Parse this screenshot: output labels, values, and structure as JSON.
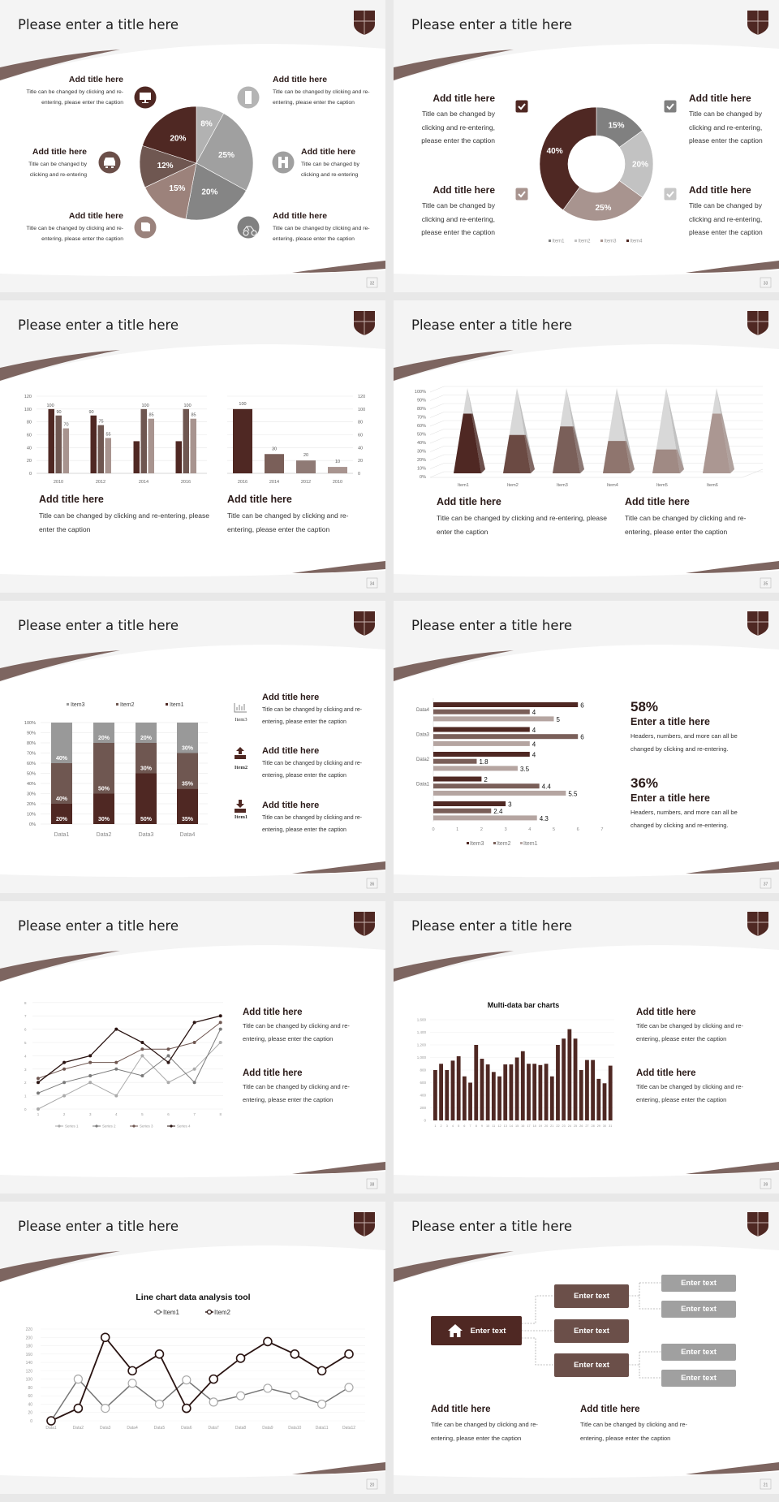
{
  "slides": [
    {
      "title": "Please enter a title here",
      "page": "32",
      "blocks": [
        {
          "title": "Add title here",
          "caption": "Title can be changed by clicking and re-entering, please enter the caption"
        },
        {
          "title": "Add title here",
          "caption": "Title can be changed by clicking and re-entering"
        },
        {
          "title": "Add title here",
          "caption": "Title can be changed by clicking and re-entering, please enter the caption"
        },
        {
          "title": "Add title here",
          "caption": "Title can be changed by clicking and re-entering, please enter the caption"
        },
        {
          "title": "Add title here",
          "caption": "Title can be changed by clicking and re-entering"
        },
        {
          "title": "Add title here",
          "caption": "Title can be changed by clicking and re-entering, please enter the caption"
        }
      ],
      "icons": [
        "monitor-icon",
        "car-icon",
        "book-icon",
        "phone-icon",
        "binoculars-icon",
        "bicycle-icon"
      ]
    },
    {
      "title": "Please enter a title here",
      "page": "33",
      "blocks": [
        {
          "title": "Add title here",
          "caption": "Title can be changed by clicking and re-entering, please enter the caption"
        },
        {
          "title": "Add title here",
          "caption": "Title can be changed by clicking and re-entering, please enter the caption"
        },
        {
          "title": "Add title here",
          "caption": "Title can be changed by clicking and re-entering, please enter the caption"
        },
        {
          "title": "Add title here",
          "caption": "Title can be changed by clicking and re-entering, please enter the caption"
        }
      ],
      "icons": [
        "checkbox-icon"
      ]
    },
    {
      "title": "Please enter a title here",
      "page": "34",
      "blocks": [
        {
          "title": "Add title here",
          "caption": "Title can be changed by clicking and re-entering, please enter the caption"
        },
        {
          "title": "Add title here",
          "caption": "Title can be changed by clicking and re-entering, please enter the caption"
        }
      ]
    },
    {
      "title": "Please enter a title here",
      "page": "35",
      "blocks": [
        {
          "title": "Add title here",
          "caption": "Title can be changed by clicking and re-entering, please enter the caption"
        },
        {
          "title": "Add title here",
          "caption": "Title can be changed by clicking and re-entering, please enter the caption"
        }
      ]
    },
    {
      "title": "Please enter a title here",
      "page": "36",
      "blocks": [
        {
          "title": "Add title here",
          "caption": "Title can be changed by clicking and re-entering, please enter the caption"
        },
        {
          "title": "Add title here",
          "caption": "Title can be changed by clicking and re-entering, please enter the caption"
        },
        {
          "title": "Add title here",
          "caption": "Title can be changed by clicking and re-entering, please enter the caption"
        }
      ],
      "icon_labels": [
        "Item3",
        "Item2",
        "Item1"
      ],
      "icons": [
        "bar-chart-icon",
        "upload-icon",
        "download-icon"
      ]
    },
    {
      "title": "Please enter a title here",
      "page": "37",
      "stats": [
        {
          "value": "58%",
          "title": "Enter a title here",
          "caption": "Headers, numbers, and more can all be changed by clicking and re-entering."
        },
        {
          "value": "36%",
          "title": "Enter a title here",
          "caption": "Headers, numbers, and more can all be changed by clicking and re-entering."
        }
      ]
    },
    {
      "title": "Please enter a title here",
      "page": "38",
      "blocks": [
        {
          "title": "Add title here",
          "caption": "Title can be changed by clicking and re-entering, please enter the caption"
        },
        {
          "title": "Add title here",
          "caption": "Title can be changed by clicking and re-entering, please enter the caption"
        }
      ]
    },
    {
      "title": "Please enter a title here",
      "page": "39",
      "blocks": [
        {
          "title": "Add title here",
          "caption": "Title can be changed by clicking and re-entering, please enter the caption"
        },
        {
          "title": "Add title here",
          "caption": "Title can be changed by clicking and re-entering, please enter the caption"
        }
      ]
    },
    {
      "title": "Please enter a title here",
      "page": "20"
    },
    {
      "title": "Please enter a title here",
      "page": "21",
      "nodes": {
        "root": "Enter text",
        "mid": [
          "Enter text",
          "Enter text",
          "Enter text"
        ],
        "leaf": [
          "Enter text",
          "Enter text",
          "Enter text",
          "Enter text"
        ]
      },
      "icons": [
        "home-icon"
      ],
      "blocks": [
        {
          "title": "Add title here",
          "caption": "Title can be changed by clicking and re-entering, please enter the caption"
        },
        {
          "title": "Add title here",
          "caption": "Title can be changed by clicking and re-entering, please enter the caption"
        }
      ]
    }
  ],
  "colors": {
    "brand_dark": "#4f2823",
    "brand_mid": "#6f5751",
    "brand_light": "#a8948f",
    "swoosh": "#7d6560"
  },
  "chart_data": [
    {
      "type": "pie",
      "values": [
        8,
        25,
        20,
        15,
        12,
        20
      ],
      "data_labels": [
        "8%",
        "25%",
        "20%",
        "15%",
        "12%",
        "20%"
      ],
      "colors": [
        "#b2b2b2",
        "#a0a0a0",
        "#858585",
        "#9c827b",
        "#6f5751",
        "#4f2823"
      ]
    },
    {
      "type": "pie",
      "donut": true,
      "categories": [
        "Item1",
        "Item2",
        "Item3",
        "Item4"
      ],
      "values": [
        15,
        20,
        25,
        40
      ],
      "data_labels": [
        "15%",
        "20%",
        "25%",
        "40%"
      ],
      "legend": [
        "Item1",
        "Item2",
        "Item3",
        "Item4"
      ],
      "legend_position": "bottom",
      "colors": [
        "#808080",
        "#c2c2c2",
        "#a8948f",
        "#4f2823"
      ]
    },
    {
      "type": "bar",
      "categories": [
        "2010",
        "2012",
        "2014",
        "2016"
      ],
      "ylim": [
        0,
        120
      ],
      "yticks": [
        0,
        20,
        40,
        60,
        80,
        100,
        120
      ],
      "grid": true,
      "series": [
        {
          "values": [
            100,
            90,
            50,
            50
          ],
          "labels": [
            "100",
            "90",
            null,
            null
          ],
          "color": "#4f2823"
        },
        {
          "values": [
            90,
            75,
            100,
            100
          ],
          "labels": [
            "90",
            "75",
            "100",
            "100"
          ],
          "color": "#6f5751"
        },
        {
          "values": [
            70,
            55,
            85,
            85
          ],
          "labels": [
            "70",
            "55",
            "85",
            "85"
          ],
          "color": "#a8948f"
        }
      ]
    },
    {
      "type": "bar",
      "categories": [
        "2016",
        "2014",
        "2012",
        "2010"
      ],
      "values": [
        100,
        30,
        20,
        10
      ],
      "data_labels": [
        "100",
        "30",
        "20",
        "10"
      ],
      "ylim": [
        0,
        120
      ],
      "yticks": [
        0,
        20,
        40,
        60,
        80,
        100,
        120
      ],
      "y_axis": "right",
      "grid": true,
      "colors": [
        "#4f2823",
        "#7a5f59",
        "#8f7a75",
        "#a8948f"
      ]
    },
    {
      "type": "bar",
      "style": "3d-pyramid",
      "categories": [
        "Item1",
        "Item2",
        "Item3",
        "Item4",
        "Item5",
        "Item6"
      ],
      "values": [
        70,
        45,
        55,
        38,
        28,
        70
      ],
      "ylim": [
        0,
        100
      ],
      "yticks": [
        "0%",
        "10%",
        "20%",
        "30%",
        "40%",
        "50%",
        "60%",
        "70%",
        "80%",
        "90%",
        "100%"
      ],
      "grid": true,
      "colors": [
        "#4f2823",
        "#6b4a43",
        "#7a5f59",
        "#8f756e",
        "#a08a84",
        "#ab9792"
      ]
    },
    {
      "type": "bar",
      "stacked": true,
      "percent": true,
      "categories": [
        "Data1",
        "Data2",
        "Data3",
        "Data4"
      ],
      "ylim": [
        0,
        100
      ],
      "yticks": [
        "0%",
        "10%",
        "20%",
        "30%",
        "40%",
        "50%",
        "60%",
        "70%",
        "80%",
        "90%",
        "100%"
      ],
      "grid": true,
      "legend_position": "top",
      "legend": [
        "Item3",
        "Item2",
        "Item1"
      ],
      "series": [
        {
          "name": "Item1",
          "values": [
            20,
            30,
            50,
            35
          ],
          "color": "#4f2823"
        },
        {
          "name": "Item2",
          "values": [
            40,
            50,
            30,
            35
          ],
          "color": "#6f5751"
        },
        {
          "name": "Item3",
          "values": [
            40,
            20,
            20,
            30
          ],
          "color": "#999999"
        }
      ]
    },
    {
      "type": "bar",
      "orientation": "horizontal",
      "categories": [
        "",
        "Data1",
        "Data2",
        "Data3",
        "Data4"
      ],
      "xlim": [
        0,
        7
      ],
      "xticks": [
        0,
        1,
        2,
        3,
        4,
        5,
        6,
        7
      ],
      "legend": [
        "Item3",
        "Item2",
        "Item1"
      ],
      "legend_position": "bottom",
      "series": [
        {
          "name": "Item3",
          "values": [
            3,
            2,
            4,
            4,
            6
          ],
          "color": "#4f2823"
        },
        {
          "name": "Item2",
          "values": [
            2.4,
            4.4,
            1.8,
            6,
            4
          ],
          "color": "#7a5f59"
        },
        {
          "name": "Item1",
          "values": [
            4.3,
            5.5,
            3.5,
            4,
            5
          ],
          "color": "#b5a5a1"
        }
      ]
    },
    {
      "type": "line",
      "x": [
        1,
        2,
        3,
        4,
        5,
        6,
        7,
        8
      ],
      "ylim": [
        0,
        8
      ],
      "yticks": [
        0,
        1,
        2,
        3,
        4,
        5,
        6,
        7,
        8
      ],
      "grid": true,
      "legend_position": "bottom",
      "series": [
        {
          "name": "Series 1",
          "values": [
            0,
            1,
            2,
            1,
            4,
            2,
            3,
            5
          ],
          "color": "#aaaaaa"
        },
        {
          "name": "Series 2",
          "values": [
            1.2,
            2,
            2.5,
            3,
            2.5,
            4,
            2,
            6
          ],
          "color": "#7a7a7a"
        },
        {
          "name": "Series 3",
          "values": [
            2.3,
            3,
            3.5,
            3.5,
            4.5,
            4.5,
            5,
            6.5
          ],
          "color": "#6f5751"
        },
        {
          "name": "Series 4",
          "values": [
            2,
            3.5,
            4,
            6,
            5,
            3.5,
            6.5,
            7
          ],
          "color": "#2a1412"
        }
      ]
    },
    {
      "type": "bar",
      "title": "Multi-data bar charts",
      "categories": [
        "1",
        "2",
        "3",
        "4",
        "5",
        "6",
        "7",
        "8",
        "9",
        "10",
        "11",
        "12",
        "13",
        "14",
        "15",
        "16",
        "17",
        "18",
        "19",
        "20",
        "21",
        "22",
        "23",
        "24",
        "25",
        "26",
        "27",
        "28",
        "29",
        "30",
        "31"
      ],
      "values": [
        800,
        900,
        800,
        950,
        1020,
        700,
        600,
        1200,
        980,
        890,
        770,
        700,
        890,
        890,
        1000,
        1100,
        900,
        900,
        880,
        900,
        700,
        1200,
        1300,
        1450,
        1300,
        800,
        960,
        960,
        660,
        590,
        870
      ],
      "ylim": [
        0,
        1600
      ],
      "yticks": [
        "0",
        "200",
        "400",
        "600",
        "800",
        "1,000",
        "1,200",
        "1,400",
        "1,600"
      ],
      "grid": true,
      "color": "#4f2823"
    },
    {
      "type": "line",
      "title": "Line chart data analysis tool",
      "categories": [
        "Data1",
        "Data2",
        "Data3",
        "Data4",
        "Data5",
        "Data6",
        "Data7",
        "Data8",
        "Data9",
        "Data10",
        "Data11",
        "Data12"
      ],
      "ylim": [
        0,
        220
      ],
      "yticks": [
        0,
        20,
        40,
        60,
        80,
        100,
        120,
        140,
        160,
        180,
        200,
        220
      ],
      "grid": true,
      "legend_position": "top",
      "series": [
        {
          "name": "Item1",
          "values": [
            0,
            100,
            30,
            90,
            40,
            98,
            45,
            60,
            78,
            62,
            40,
            80
          ],
          "color": "#777777"
        },
        {
          "name": "Item2",
          "values": [
            0,
            30,
            200,
            120,
            160,
            30,
            100,
            150,
            190,
            160,
            120,
            160
          ],
          "color": "#2a1412"
        }
      ]
    }
  ]
}
